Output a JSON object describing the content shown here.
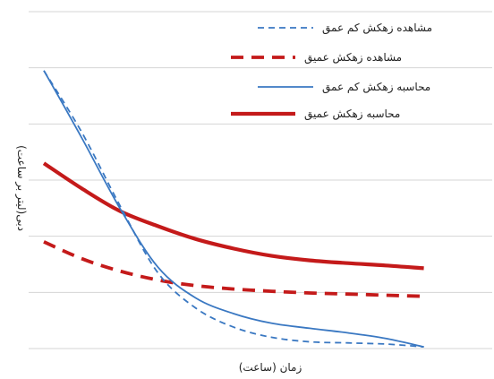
{
  "chart_data": {
    "type": "line",
    "title": "",
    "xlabel": "زمان (ساعت)",
    "ylabel": "دبی(لیتر بر ساعت)",
    "x": [
      0,
      1,
      2,
      3,
      4,
      5,
      6,
      7,
      8,
      9,
      10
    ],
    "xlim": [
      -0.4,
      11.8
    ],
    "ylim": [
      0,
      6
    ],
    "grid": true,
    "legend_position": "top-right",
    "series": [
      {
        "name": "مشاهده زهکش کم عمق",
        "color": "#3a78c2",
        "style": "dashed-thin",
        "values": [
          4.95,
          3.85,
          2.55,
          1.35,
          0.72,
          0.38,
          0.2,
          0.12,
          0.1,
          0.08,
          0.03
        ]
      },
      {
        "name": "مشاهده زهکش عمیق",
        "color": "#c41a1a",
        "style": "dashed-thick",
        "values": [
          1.9,
          1.6,
          1.38,
          1.22,
          1.12,
          1.06,
          1.02,
          0.99,
          0.97,
          0.95,
          0.93
        ]
      },
      {
        "name": "محاسبه زهکش کم عمق",
        "color": "#3a78c2",
        "style": "solid-thin",
        "values": [
          4.95,
          3.75,
          2.5,
          1.45,
          0.9,
          0.62,
          0.45,
          0.36,
          0.28,
          0.18,
          0.03
        ]
      },
      {
        "name": "محاسبه زهکش عمیق",
        "color": "#c41a1a",
        "style": "solid-thick",
        "values": [
          3.3,
          2.85,
          2.45,
          2.18,
          1.95,
          1.78,
          1.65,
          1.57,
          1.52,
          1.48,
          1.43
        ]
      }
    ]
  }
}
